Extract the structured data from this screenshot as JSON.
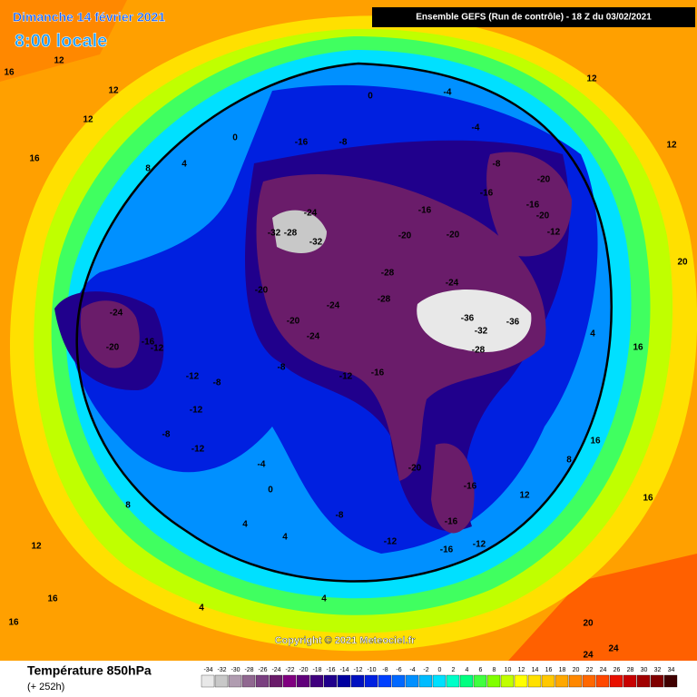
{
  "header": {
    "date": "Dimanche 14 février 2021",
    "time": "8:00 locale",
    "run": "Ensemble GEFS  (Run de contrôle)  -  18 Z du 03/02/2021"
  },
  "copyright": "Copyright © 2021 Meteociel.fr",
  "legend": {
    "title": "Température 850hPa",
    "lead": "(+ 252h)",
    "ticks": [
      -34,
      -32,
      -30,
      -28,
      -26,
      -24,
      -22,
      -20,
      -18,
      -16,
      -14,
      -12,
      -10,
      -8,
      -6,
      -4,
      -2,
      0,
      2,
      4,
      6,
      8,
      10,
      12,
      14,
      16,
      18,
      20,
      22,
      24,
      26,
      28,
      30,
      32,
      34
    ],
    "colors": [
      "#e8e8e8",
      "#c8c8c8",
      "#b09cb0",
      "#906890",
      "#7a4080",
      "#6a1c6a",
      "#800080",
      "#60007a",
      "#40007e",
      "#20008c",
      "#0000a0",
      "#0010c0",
      "#0020e0",
      "#0040ff",
      "#0068ff",
      "#0090ff",
      "#00bcff",
      "#00e0ff",
      "#00ffc8",
      "#00ff80",
      "#40ff40",
      "#80ff00",
      "#c0ff00",
      "#ffff00",
      "#ffe000",
      "#ffc800",
      "#ffa800",
      "#ff8800",
      "#ff6800",
      "#ff4800",
      "#e81000",
      "#c80000",
      "#a00000",
      "#800000",
      "#400000"
    ]
  },
  "map": {
    "labels": [
      12,
      16,
      12,
      12,
      16,
      8,
      4,
      0,
      -16,
      -8,
      0,
      -4,
      -4,
      -8,
      -20,
      -16,
      -16,
      -20,
      -16,
      -20,
      -12,
      -24,
      -32,
      -28,
      -32,
      -20,
      -28,
      -24,
      -36,
      -36,
      -32,
      -28,
      -20,
      -24,
      -28,
      -20,
      -24,
      -16,
      -12,
      -8,
      -24,
      -20,
      -16,
      -12,
      -12,
      -8,
      -12,
      -8,
      -12,
      -4,
      0,
      -20,
      -16,
      -16,
      -12,
      -16,
      -12,
      -8,
      4,
      4,
      8,
      12,
      16,
      16,
      4,
      4,
      12,
      16,
      16,
      8,
      20,
      20,
      24,
      24,
      12,
      12,
      16,
      4
    ]
  }
}
